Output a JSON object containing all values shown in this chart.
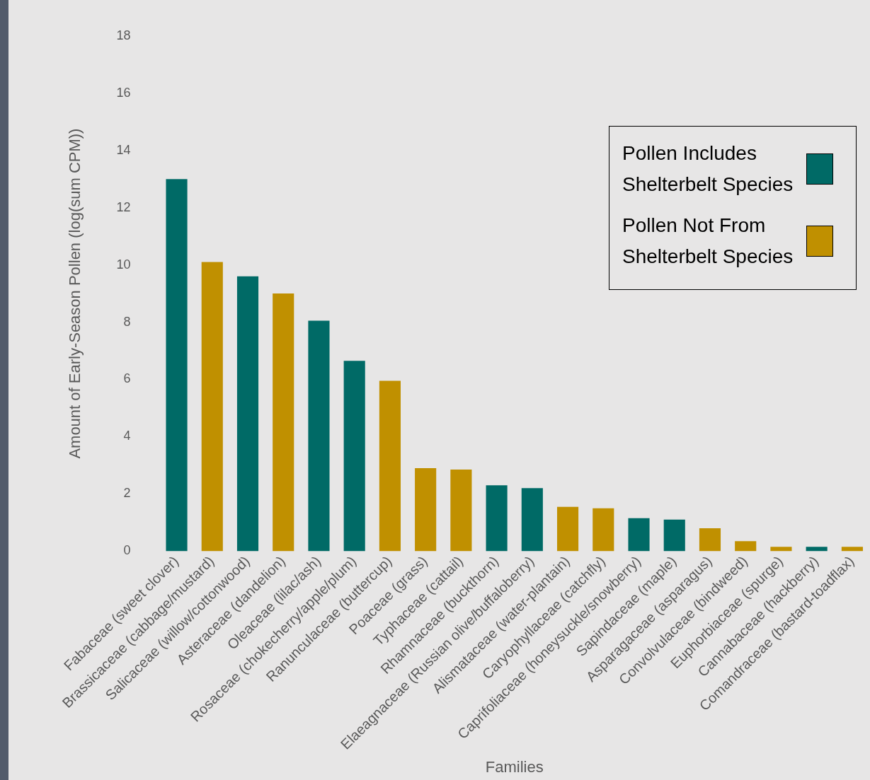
{
  "chart_data": {
    "type": "bar",
    "xlabel": "Families",
    "ylabel": "Amount of Early-Season Pollen (log(sum CPM))",
    "categories": [
      "Fabaceae (sweet clover)",
      "Brassicaceae (cabbage/mustard)",
      "Salicaceae (willow/cottonwood)",
      "Asteraceae (dandelion)",
      "Oleaceae (lilac/ash)",
      "Rosaceae (chokecherry/apple/plum)",
      "Ranunculaceae (buttercup)",
      "Poaceae (grass)",
      "Typhaceae (cattail)",
      "Rhamnaceae (buckthorn)",
      "Elaeagnaceae (Russian olive/buffaloberry)",
      "Alismataceae (water-plantain)",
      "Caryophyllaceae (catchfly)",
      "Caprifoliaceae (honeysuckle/snowberry)",
      "Sapindaceae (maple)",
      "Asparagaceae (asparagus)",
      "Convolvulaceae (bindweed)",
      "Euphorbiaceae (spurge)",
      "Cannabaceae (hackberry)",
      "Comandraceae (bastard-toadflax)"
    ],
    "series": [
      {
        "name": "Pollen Includes Shelterbelt Species",
        "color": "#006a66",
        "values": [
          13.0,
          null,
          9.6,
          null,
          8.05,
          6.65,
          null,
          null,
          null,
          2.3,
          2.2,
          null,
          null,
          1.15,
          1.1,
          null,
          null,
          null,
          0.15,
          null
        ]
      },
      {
        "name": "Pollen Not From Shelterbelt Species",
        "color": "#c09000",
        "values": [
          null,
          10.1,
          null,
          9.0,
          null,
          null,
          5.95,
          2.9,
          2.85,
          null,
          null,
          1.55,
          1.5,
          null,
          null,
          0.8,
          0.35,
          0.15,
          null,
          0.15
        ]
      }
    ],
    "ylim": [
      0,
      18
    ],
    "yticks": [
      0,
      2,
      4,
      6,
      8,
      10,
      12,
      14,
      16,
      18
    ],
    "grid": false,
    "legend": "right"
  }
}
